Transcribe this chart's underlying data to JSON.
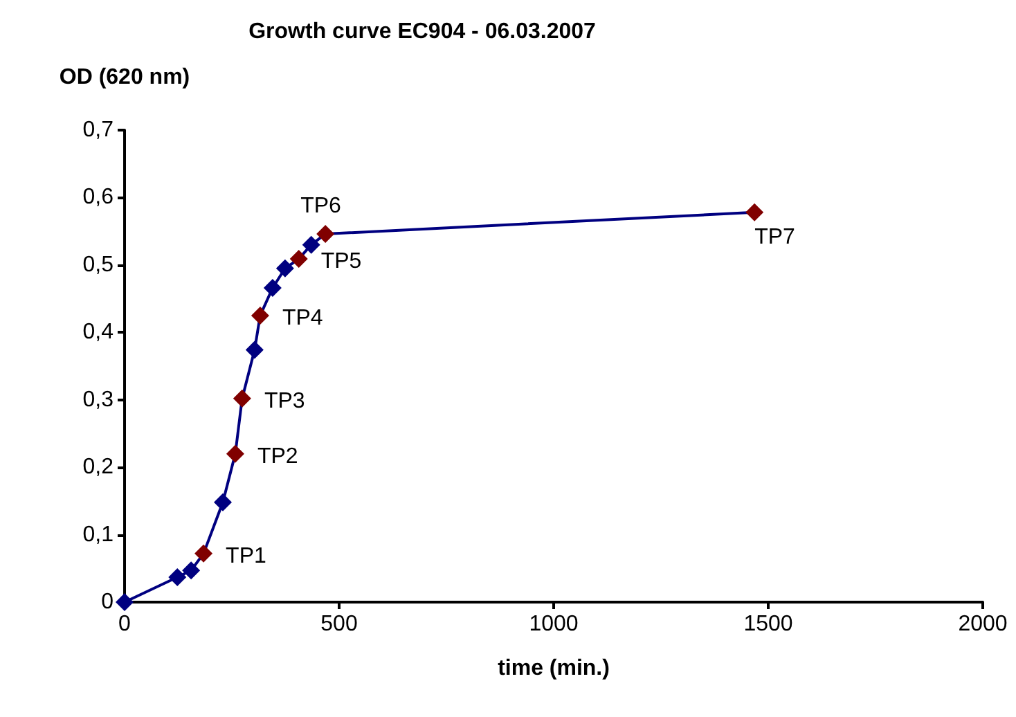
{
  "chart_data": {
    "type": "line",
    "title": "Growth curve EC904 - 06.03.2007",
    "xlabel": "time (min.)",
    "ylabel": "OD (620 nm)",
    "x": [
      0,
      123,
      155,
      184,
      229,
      258,
      274,
      303,
      316,
      345,
      374,
      406,
      435,
      468,
      1468
    ],
    "series": [
      {
        "color": "#000080",
        "values": [
          0,
          0.037,
          0.047,
          0.072,
          0.148,
          0.22,
          0.302,
          0.374,
          0.425,
          0.466,
          0.495,
          0.509,
          0.53,
          0.546,
          0.578
        ],
        "colors": [
          "#000080",
          "#000080",
          "#000080",
          "#800000",
          "#000080",
          "#800000",
          "#800000",
          "#000080",
          "#800000",
          "#000080",
          "#000080",
          "#800000",
          "#000080",
          "#800000",
          "#800000"
        ]
      }
    ],
    "marker": "diamond",
    "grid": false,
    "xlim": [
      0,
      2000
    ],
    "xticks": [
      0,
      500,
      1000,
      1500,
      2000
    ],
    "ylim": [
      0,
      0.7
    ],
    "yticks": [
      {
        "value": 0,
        "label": "0"
      },
      {
        "value": 0.1,
        "label": "0,1"
      },
      {
        "value": 0.2,
        "label": "0,2"
      },
      {
        "value": 0.3,
        "label": "0,3"
      },
      {
        "value": 0.4,
        "label": "0,4"
      },
      {
        "value": 0.5,
        "label": "0,5"
      },
      {
        "value": 0.6,
        "label": "0,6"
      },
      {
        "value": 0.7,
        "label": "0,7"
      }
    ],
    "annotations": [
      {
        "text": "TP1",
        "x": 184,
        "y": 0.072
      },
      {
        "text": "TP2",
        "x": 258,
        "y": 0.22
      },
      {
        "text": "TP3",
        "x": 274,
        "y": 0.302
      },
      {
        "text": "TP4",
        "x": 316,
        "y": 0.425
      },
      {
        "text": "TP5",
        "x": 406,
        "y": 0.509
      },
      {
        "text": "TP6",
        "x": 468,
        "y": 0.546
      },
      {
        "text": "TP7",
        "x": 1468,
        "y": 0.578
      }
    ]
  }
}
